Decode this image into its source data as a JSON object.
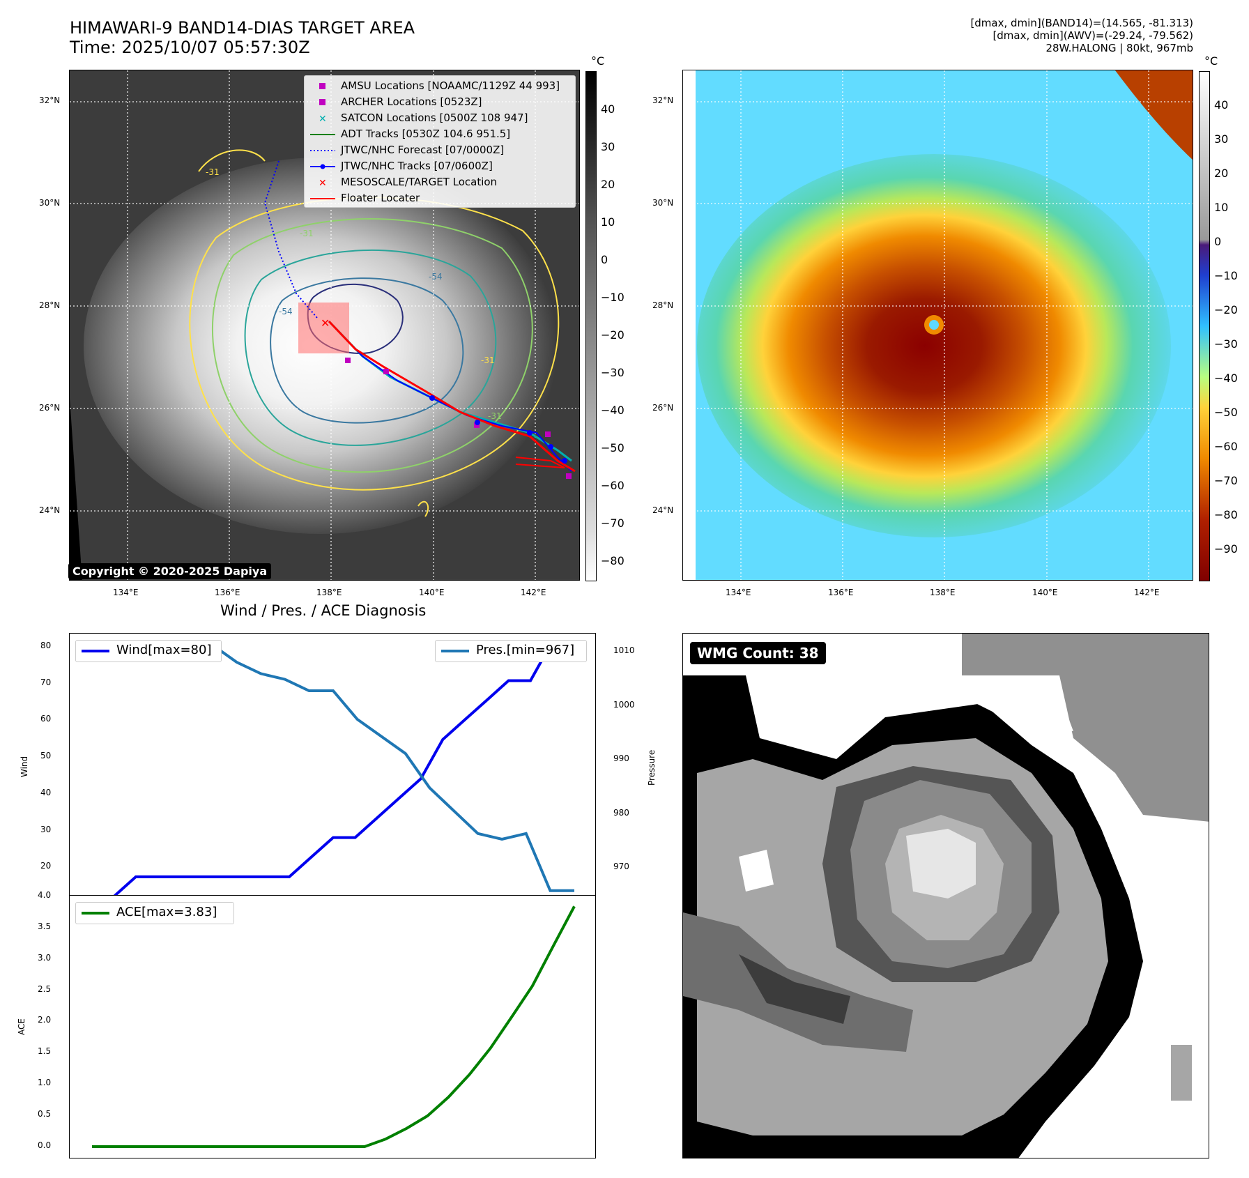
{
  "header": {
    "title_line1": "HIMAWARI-9 BAND14-DIAS TARGET AREA",
    "title_line2": "Time: 2025/10/07 05:57:30Z",
    "stats_line1": "[dmax, dmin](BAND14)=(14.565, -81.313)",
    "stats_line2": "[dmax, dmin](AWV)=(-29.24, -79.562)",
    "stats_line3": "28W.HALONG | 80kt, 967mb"
  },
  "ir_panel": {
    "copyright": "Copyright © 2020-2025 Dapiya",
    "colorbar_unit": "°C",
    "colorbar_ticks": [
      "40",
      "30",
      "20",
      "10",
      "0",
      "−10",
      "−20",
      "−30",
      "−40",
      "−50",
      "−60",
      "−70",
      "−80"
    ],
    "lat_labels": [
      "32°N",
      "30°N",
      "28°N",
      "26°N",
      "24°N"
    ],
    "lon_labels": [
      "134°E",
      "136°E",
      "138°E",
      "140°E",
      "142°E"
    ],
    "contour_labels": [
      "-31",
      "-31",
      "-31",
      "-54",
      "-54",
      "-31"
    ],
    "legend": [
      {
        "label": "AMSU Locations [NOAAMC/1129Z 44 993]",
        "marker": "square",
        "color": "#c000c0"
      },
      {
        "label": "ARCHER Locations [0523Z]",
        "marker": "square",
        "color": "#c000c0"
      },
      {
        "label": "SATCON Locations [0500Z 108 947]",
        "marker": "x",
        "color": "#00b0b0"
      },
      {
        "label": "ADT Tracks [0530Z 104.6 951.5]",
        "marker": "line",
        "color": "#008000"
      },
      {
        "label": "JTWC/NHC Forecast [07/0000Z]",
        "marker": "dotted",
        "color": "#0000ff"
      },
      {
        "label": "JTWC/NHC Tracks [07/0600Z]",
        "marker": "line-dot",
        "color": "#0000ff"
      },
      {
        "label": "MESOSCALE/TARGET Location",
        "marker": "x",
        "color": "#ff0000"
      },
      {
        "label": "Floater Locater",
        "marker": "line",
        "color": "#ff0000"
      }
    ]
  },
  "color_panel": {
    "colorbar_unit": "°C",
    "colorbar_ticks": [
      "40",
      "30",
      "20",
      "10",
      "0",
      "−10",
      "−20",
      "−30",
      "−40",
      "−50",
      "−60",
      "−70",
      "−80",
      "−90"
    ],
    "lat_labels": [
      "32°N",
      "30°N",
      "28°N",
      "26°N",
      "24°N"
    ],
    "lon_labels": [
      "134°E",
      "136°E",
      "138°E",
      "140°E",
      "142°E"
    ]
  },
  "diag_panel": {
    "title": "Wind / Pres. / ACE Diagnosis",
    "wind_ylabel": "Wind",
    "pres_ylabel": "Pressure",
    "ace_ylabel": "ACE",
    "wind_legend": "Wind[max=80]",
    "pres_legend": "Pres.[min=967]",
    "ace_legend": "ACE[max=3.83]",
    "wind_ticks": [
      "80",
      "70",
      "60",
      "50",
      "40",
      "30",
      "20"
    ],
    "pres_ticks": [
      "1010",
      "1000",
      "990",
      "980",
      "970"
    ],
    "ace_ticks": [
      "4.0",
      "3.5",
      "3.0",
      "2.5",
      "2.0",
      "1.5",
      "1.0",
      "0.5",
      "0.0"
    ]
  },
  "wmg_panel": {
    "badge": "WMG Count: 38"
  },
  "chart_data": [
    {
      "type": "line",
      "title": "Wind / Pres. / ACE Diagnosis",
      "ylabel": "Wind",
      "ylim": [
        15,
        82
      ],
      "series": [
        {
          "name": "Wind[max=80]",
          "color": "#0000ee",
          "values": [
            15,
            15,
            20,
            20,
            20,
            20,
            20,
            20,
            20,
            20,
            25,
            30,
            30,
            35,
            40,
            45,
            55,
            60,
            65,
            70,
            70,
            80,
            80
          ]
        }
      ]
    },
    {
      "type": "line",
      "ylabel": "Pressure",
      "ylim": [
        966,
        1012
      ],
      "series": [
        {
          "name": "Pres.[min=967]",
          "color": "#1f77b4",
          "values": [
            1009,
            1009,
            1009,
            1010,
            1010,
            1010,
            1007,
            1005,
            1004,
            1002,
            1002,
            997,
            994,
            991,
            985,
            981,
            977,
            976,
            977,
            967,
            967
          ]
        }
      ]
    },
    {
      "type": "line",
      "ylabel": "ACE",
      "ylim": [
        -0.2,
        4.0
      ],
      "series": [
        {
          "name": "ACE[max=3.83]",
          "color": "#008000",
          "values": [
            0,
            0,
            0,
            0,
            0,
            0,
            0,
            0,
            0,
            0,
            0,
            0,
            0,
            0,
            0.12,
            0.29,
            0.49,
            0.79,
            1.15,
            1.57,
            2.06,
            2.56,
            3.2,
            3.83
          ]
        }
      ]
    }
  ],
  "colors": {
    "ir_bg": "#3c3c3c",
    "wind": "#0000ee",
    "pres": "#1f77b4",
    "ace": "#008000"
  }
}
